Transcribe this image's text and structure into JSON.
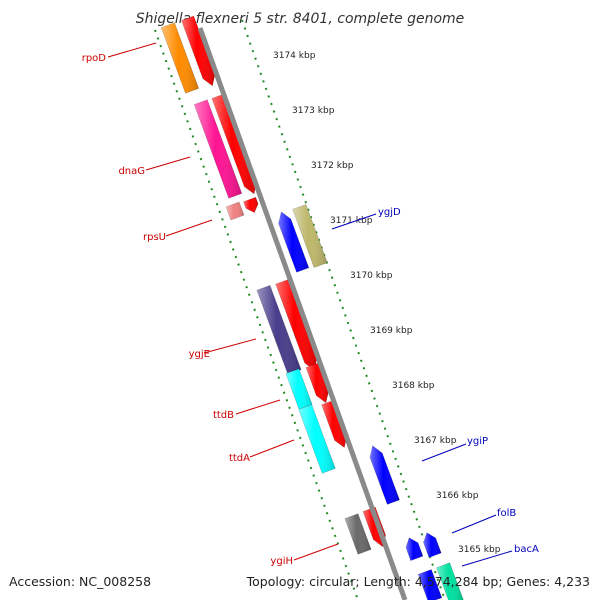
{
  "title": "Shigella flexneri 5 str. 8401, complete genome",
  "footer": {
    "accession": "Accession: NC_008258",
    "summary": "Topology: circular; Length: 4,574,284 bp; Genes: 4,233"
  },
  "colors": {
    "backbone": "#8a8a8a",
    "tick": "#228b22",
    "reverse_label": "#cc0000",
    "forward_label": "#0000bb"
  },
  "scale_ticks": [
    "3174 kbp",
    "3173 kbp",
    "3172 kbp",
    "3171 kbp",
    "3170 kbp",
    "3169 kbp",
    "3168 kbp",
    "3167 kbp",
    "3166 kbp",
    "3165 kbp"
  ],
  "reverse_genes": [
    {
      "label": "rpoD",
      "color": "#ff8c00"
    },
    {
      "label": "dnaG",
      "color": "#ff1493"
    },
    {
      "label": "rpsU",
      "color": "#f08080"
    },
    {
      "label": "ygjE",
      "color": "#483d8b"
    },
    {
      "label": "ttdB",
      "color": "#00ffff"
    },
    {
      "label": "ttdA",
      "color": "#00ffff"
    },
    {
      "label": "ygiH",
      "color": "#696969"
    }
  ],
  "forward_genes": [
    {
      "label": "ygjD",
      "color": "#bdb76b"
    },
    {
      "label": "ygiP",
      "color": "#0000ff"
    },
    {
      "label": "folB",
      "color": "#0000ff"
    },
    {
      "label": "bacA",
      "color": "#00e0a0"
    }
  ]
}
